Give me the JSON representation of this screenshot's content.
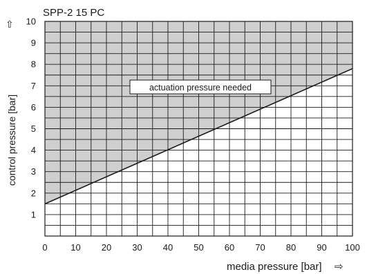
{
  "chart_data": {
    "type": "area",
    "title": "SPP-2 15 PC",
    "xlabel": "media pressure [bar]",
    "ylabel": "control pressure [bar]",
    "x_arrow": "⇨",
    "y_arrow": "⇧",
    "xlim": [
      0,
      100
    ],
    "ylim": [
      0,
      10
    ],
    "x_ticks": [
      "0",
      "10",
      "20",
      "30",
      "40",
      "50",
      "60",
      "70",
      "80",
      "90",
      "100"
    ],
    "y_ticks": [
      "1",
      "2",
      "3",
      "4",
      "5",
      "6",
      "7",
      "8",
      "9",
      "10"
    ],
    "grid": true,
    "series": [
      {
        "name": "actuation pressure needed",
        "x": [
          0,
          100
        ],
        "y": [
          1.5,
          7.8
        ]
      }
    ],
    "annotation": "actuation pressure needed",
    "colors": {
      "shaded_region": "#cfcfcf",
      "grid": "#1a1a1a",
      "line": "#1a1a1a"
    }
  }
}
